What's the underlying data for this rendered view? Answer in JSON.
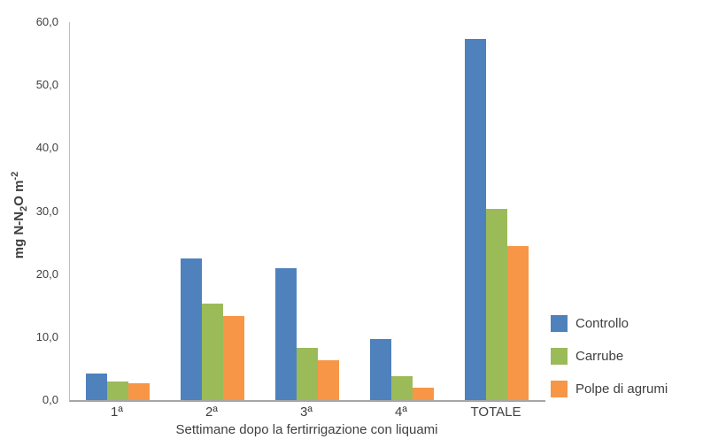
{
  "chart_data": {
    "type": "bar",
    "title": "",
    "categories": [
      "1ª",
      "2ª",
      "3ª",
      "4ª",
      "TOTALE"
    ],
    "series": [
      {
        "name": "Controllo",
        "color": "#4F81BD",
        "values": [
          4.2,
          22.5,
          21.0,
          9.7,
          57.3
        ]
      },
      {
        "name": "Carrube",
        "color": "#9BBB59",
        "values": [
          3.0,
          15.3,
          8.3,
          3.8,
          30.4
        ]
      },
      {
        "name": "Polpe di agrumi",
        "color": "#F79646",
        "values": [
          2.7,
          13.4,
          6.3,
          2.0,
          24.4
        ]
      }
    ],
    "xlabel": "Settimane dopo la fertirrigazione con liquami",
    "ylabel": "mg N-N2O m-2",
    "ylabel_parts": {
      "pre": "mg N-N",
      "sub": "2",
      "mid": "O m",
      "sup": "-2"
    },
    "ylim": [
      0,
      60
    ],
    "ytick_step": 10,
    "ytick_labels": [
      "0,0",
      "10,0",
      "20,0",
      "30,0",
      "40,0",
      "50,0",
      "60,0"
    ],
    "grid": false,
    "legend_position": "right",
    "colors": {
      "axis_line": "#BFBFBF",
      "baseline": "#A6A6A6",
      "text": "#404040",
      "background": "#FFFFFF"
    }
  }
}
